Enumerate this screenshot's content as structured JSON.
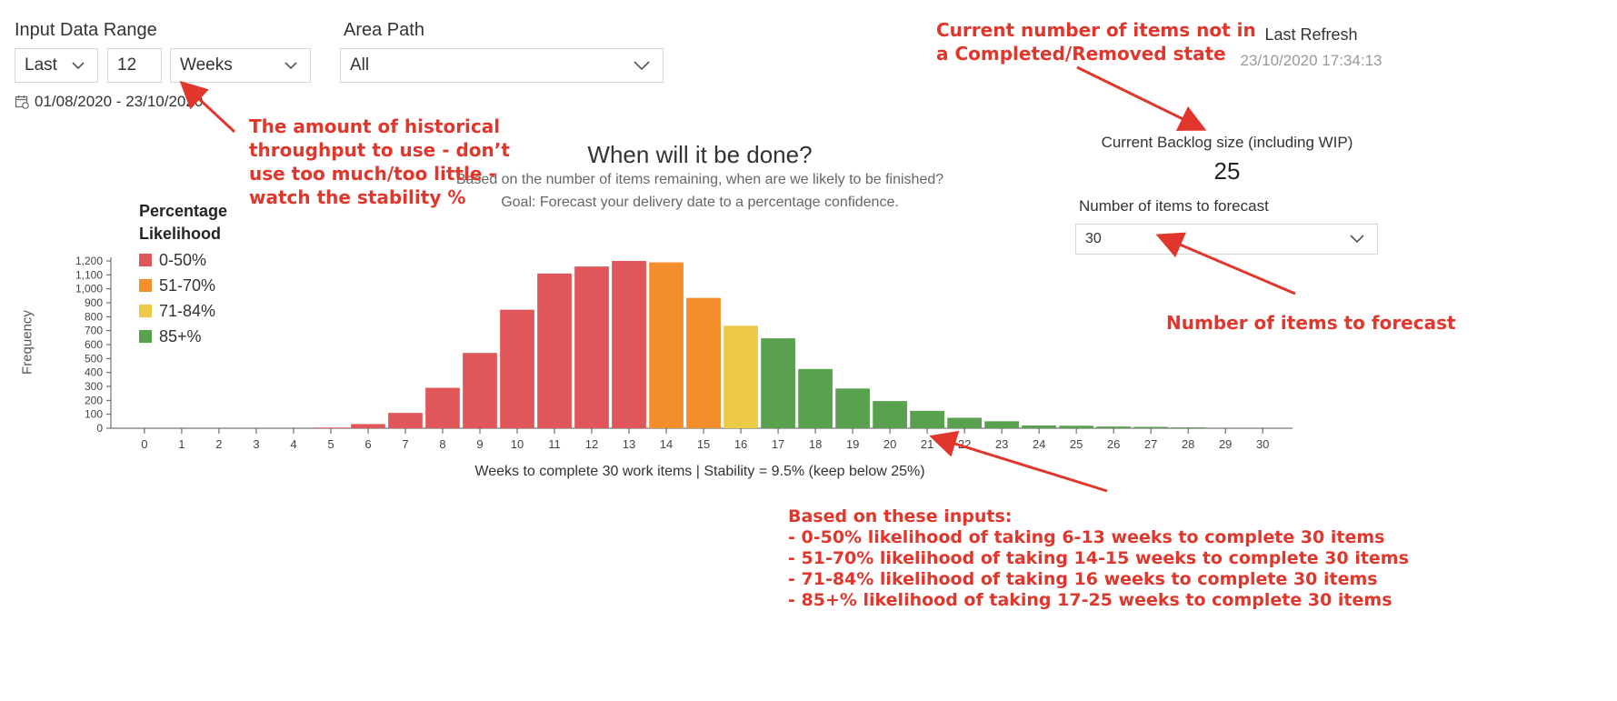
{
  "filters": {
    "input_range_label": "Input Data Range",
    "period_type": "Last",
    "period_count": "12",
    "period_unit": "Weeks",
    "area_path_label": "Area Path",
    "area_path_value": "All",
    "date_range": "01/08/2020 - 23/10/2020"
  },
  "refresh": {
    "label": "Last Refresh",
    "timestamp": "23/10/2020 17:34:13"
  },
  "header": {
    "title": "When will it be done?",
    "subtitle1": "Based on the number of items remaining, when are we likely to be finished?",
    "subtitle2": "Goal: Forecast your delivery date to a percentage confidence."
  },
  "backlog": {
    "label": "Current Backlog size (including WIP)",
    "value": "25",
    "forecast_label": "Number of items to forecast",
    "forecast_value": "30"
  },
  "annotations": {
    "throughput": "The amount of historical\nthroughput to use - don’t\nuse too much/too little -\nwatch the stability %",
    "backlog": "Current number of items not in\na Completed/Removed state",
    "forecast": "Number of items to forecast",
    "inputs": "Based on these inputs:\n- 0-50% likelihood of taking 6-13 weeks to complete 30 items\n- 51-70% likelihood of taking 14-15 weeks to complete 30 items\n- 71-84% likelihood of taking 16 weeks to complete 30 items\n- 85+% likelihood of taking 17-25 weeks to complete 30 items"
  },
  "colors": {
    "red": "#e15759",
    "orange": "#f28e2b",
    "yellow": "#edc948",
    "green": "#59a14f",
    "annotation": "#e0362c"
  },
  "chart_data": {
    "type": "bar",
    "title": "",
    "ylabel": "Frequency",
    "xlabel": "Weeks to complete 30 work items | Stability = 9.5% (keep below 25%)",
    "ylim": [
      0,
      1200
    ],
    "yticks": [
      0,
      100,
      200,
      300,
      400,
      500,
      600,
      700,
      800,
      900,
      1000,
      1100,
      1200
    ],
    "ytick_labels": [
      "0",
      "100",
      "200",
      "300",
      "400",
      "500",
      "600",
      "700",
      "800",
      "900",
      "1,000",
      "1,100",
      "1,200"
    ],
    "categories": [
      "0",
      "1",
      "2",
      "3",
      "4",
      "5",
      "6",
      "7",
      "8",
      "9",
      "10",
      "11",
      "12",
      "13",
      "14",
      "15",
      "16",
      "17",
      "18",
      "19",
      "20",
      "21",
      "22",
      "23",
      "24",
      "25",
      "26",
      "27",
      "28",
      "29",
      "30"
    ],
    "values": [
      0,
      0,
      0,
      0,
      0,
      5,
      30,
      110,
      290,
      540,
      850,
      1110,
      1160,
      1200,
      1190,
      935,
      735,
      645,
      425,
      285,
      195,
      125,
      75,
      50,
      20,
      18,
      12,
      10,
      6,
      0,
      0
    ],
    "bucket": [
      "red",
      "red",
      "red",
      "red",
      "red",
      "red",
      "red",
      "red",
      "red",
      "red",
      "red",
      "red",
      "red",
      "red",
      "orange",
      "orange",
      "yellow",
      "green",
      "green",
      "green",
      "green",
      "green",
      "green",
      "green",
      "green",
      "green",
      "green",
      "green",
      "green",
      "green",
      "green"
    ],
    "legend_title": "Percentage Likelihood",
    "legend": [
      {
        "name": "0-50%",
        "color": "red"
      },
      {
        "name": "51-70%",
        "color": "orange"
      },
      {
        "name": "71-84%",
        "color": "yellow"
      },
      {
        "name": "85+%",
        "color": "green"
      }
    ],
    "legend_position": "top-left",
    "grid": false
  }
}
